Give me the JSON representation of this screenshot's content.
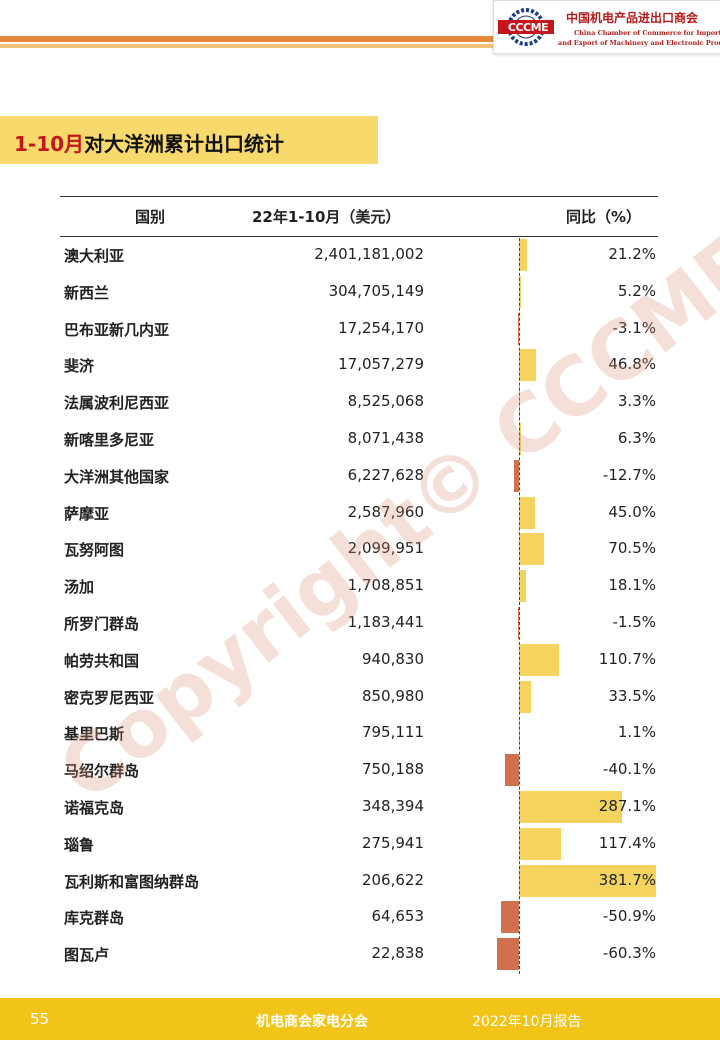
{
  "header": {
    "logo_text": "CCCME",
    "org_cn": "中国机电产品进出口商会",
    "org_en_line1": "China Chamber of Commerce for Import",
    "org_en_line2": "and Export of Machinery and Electronic Products"
  },
  "title": {
    "highlight": "1-10月",
    "rest": "对大洋洲累计出口统计"
  },
  "table": {
    "headers": {
      "country": "国别",
      "value": "22年1-10月（美元）",
      "yoy": "同比（%）"
    },
    "rows": [
      {
        "country": "澳大利亚",
        "value": "2,401,181,002",
        "yoy_text": "21.2%",
        "yoy": 21.2
      },
      {
        "country": "新西兰",
        "value": "304,705,149",
        "yoy_text": "5.2%",
        "yoy": 5.2
      },
      {
        "country": "巴布亚新几内亚",
        "value": "17,254,170",
        "yoy_text": "-3.1%",
        "yoy": -3.1
      },
      {
        "country": "斐济",
        "value": "17,057,279",
        "yoy_text": "46.8%",
        "yoy": 46.8
      },
      {
        "country": "法属波利尼西亚",
        "value": "8,525,068",
        "yoy_text": "3.3%",
        "yoy": 3.3
      },
      {
        "country": "新喀里多尼亚",
        "value": "8,071,438",
        "yoy_text": "6.3%",
        "yoy": 6.3
      },
      {
        "country": "大洋洲其他国家",
        "value": "6,227,628",
        "yoy_text": "-12.7%",
        "yoy": -12.7
      },
      {
        "country": "萨摩亚",
        "value": "2,587,960",
        "yoy_text": "45.0%",
        "yoy": 45.0
      },
      {
        "country": "瓦努阿图",
        "value": "2,099,951",
        "yoy_text": "70.5%",
        "yoy": 70.5
      },
      {
        "country": "汤加",
        "value": "1,708,851",
        "yoy_text": "18.1%",
        "yoy": 18.1
      },
      {
        "country": "所罗门群岛",
        "value": "1,183,441",
        "yoy_text": "-1.5%",
        "yoy": -1.5
      },
      {
        "country": "帕劳共和国",
        "value": "940,830",
        "yoy_text": "110.7%",
        "yoy": 110.7
      },
      {
        "country": "密克罗尼西亚",
        "value": "850,980",
        "yoy_text": "33.5%",
        "yoy": 33.5
      },
      {
        "country": "基里巴斯",
        "value": "795,111",
        "yoy_text": "1.1%",
        "yoy": 1.1
      },
      {
        "country": "马绍尔群岛",
        "value": "750,188",
        "yoy_text": "-40.1%",
        "yoy": -40.1
      },
      {
        "country": "诺福克岛",
        "value": "348,394",
        "yoy_text": "287.1%",
        "yoy": 287.1
      },
      {
        "country": "瑙鲁",
        "value": "275,941",
        "yoy_text": "117.4%",
        "yoy": 117.4
      },
      {
        "country": "瓦利斯和富图纳群岛",
        "value": "206,622",
        "yoy_text": "381.7%",
        "yoy": 381.7
      },
      {
        "country": "库克群岛",
        "value": "64,653",
        "yoy_text": "-50.9%",
        "yoy": -50.9
      },
      {
        "country": "图瓦卢",
        "value": "22,838",
        "yoy_text": "-60.3%",
        "yoy": -60.3
      }
    ]
  },
  "colors": {
    "positive_bar": "#f4d35e",
    "negative_bar": "#d0704e",
    "title_band": "#f7da6b",
    "footer": "#f2c418"
  },
  "watermark": "Copyright© CCCME",
  "footer": {
    "page": "55",
    "center": "机电商会家电分会",
    "right": "2022年10月报告"
  }
}
